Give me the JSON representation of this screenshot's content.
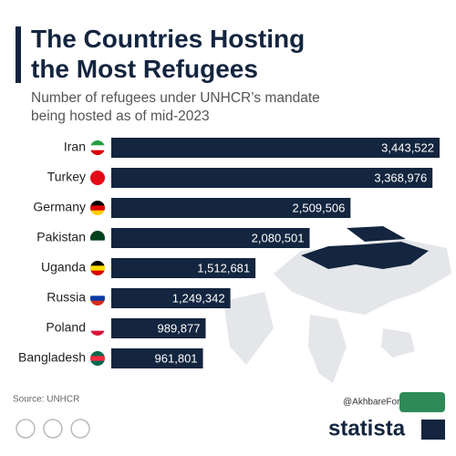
{
  "chart_data": {
    "type": "bar",
    "orientation": "horizontal",
    "title": "The Countries Hosting the Most Refugees",
    "subtitle": "Number of refugees under UNHCR’s mandate being hosted as of mid-2023",
    "categories": [
      "Iran",
      "Turkey",
      "Germany",
      "Pakistan",
      "Uganda",
      "Russia",
      "Poland",
      "Bangladesh"
    ],
    "values": [
      3443522,
      3368976,
      2509506,
      2080501,
      1512681,
      1249342,
      989877,
      961801
    ],
    "value_labels": [
      "3,443,522",
      "3,368,976",
      "2,509,506",
      "2,080,501",
      "1,512,681",
      "1,249,342",
      "989,877",
      "961,801"
    ],
    "color": "#13253f",
    "source": "Source: UNHCR",
    "credit": "@AkhbareFori",
    "brand": "statista"
  }
}
